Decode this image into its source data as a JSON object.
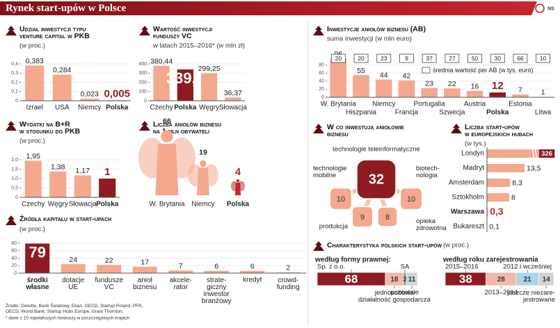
{
  "title": "Rynek start-upów w Polsce",
  "logo": "NS",
  "chart_data": [
    {
      "type": "bar",
      "title": "Udział inwestycji typu\nventure capital w PKB",
      "subtitle": "(w proc.)",
      "categories": [
        "Izrael",
        "USA",
        "Niemcy",
        "Polska"
      ],
      "values": [
        0.383,
        0.284,
        0.023,
        0.005
      ],
      "value_labels": [
        "0,383",
        "0,284",
        "0,023",
        "0,005"
      ],
      "color": "#f4a88e",
      "highlight": "Polska",
      "highlight_color": "#8e1b1f",
      "ylim": [
        0,
        0.4
      ],
      "yticks": [
        0,
        {
          "value": 0.1,
          "label": "0,1"
        },
        {
          "value": 0.2,
          "label": "0,2"
        },
        {
          "value": 0.3,
          "label": "0,3"
        },
        {
          "value": 0.4,
          "label": "0,4"
        }
      ],
      "grid": true
    },
    {
      "type": "bar",
      "title": "Wartość inwestycji\nfunduszy VC",
      "subtitle": "w latach 2015–2016* (w mln zł)",
      "categories": [
        "Czechy",
        "Polska",
        "Węgry",
        "Słowacja"
      ],
      "values": [
        380.44,
        339.9,
        299.25,
        36.37
      ],
      "value_labels": [
        "380,44",
        "339,9",
        "299,25",
        "36,37"
      ],
      "color": "#f4a88e",
      "highlight": "Polska",
      "highlight_color": "#8e1b1f",
      "ylim": [
        0,
        400
      ],
      "yticks": [
        0,
        100,
        200,
        300,
        400
      ],
      "grid": true
    },
    {
      "type": "bar",
      "title": "Wydatki na B+R\nw stosunku do PKB",
      "subtitle": "(w proc.)",
      "categories": [
        "Czechy",
        "Węgry",
        "Słowacja",
        "Polska"
      ],
      "values": [
        1.95,
        1.38,
        1.17,
        1
      ],
      "value_labels": [
        "1,95",
        "1,38",
        "1,17",
        "1"
      ],
      "color": "#f4a88e",
      "highlight": "Polska",
      "highlight_color": "#8e1b1f",
      "ylim": [
        0,
        2
      ],
      "yticks": [
        0,
        {
          "value": 0.5,
          "label": "0,5"
        },
        {
          "value": 1,
          "label": "1,0"
        },
        {
          "value": 1.5,
          "label": "1,5"
        },
        {
          "value": 2,
          "label": "2,0"
        }
      ],
      "grid": true
    },
    {
      "type": "pictogram",
      "title": "Liczba aniołów biznesu\nna 1 mln obywateli",
      "categories": [
        "W. Brytania",
        "Niemcy",
        "Polska"
      ],
      "values": [
        66,
        19,
        4
      ],
      "color": "#f4a88e",
      "highlight": "Polska",
      "highlight_color": "#c0272d"
    },
    {
      "type": "bar",
      "title": "Źródła kapitału w start-upach",
      "subtitle": "(w proc.)",
      "categories": [
        "środki\nwłasne",
        "dotacje\nUE",
        "fundusze\nVC",
        "anioł\nbiznesu",
        "akcele-\nrator",
        "strate-\ngiczny\ninwestor\nbranżowy",
        "kredyt",
        "crowd-\nfunding"
      ],
      "values": [
        79,
        24,
        22,
        17,
        7,
        6,
        6,
        2
      ],
      "color": "#f4a88e",
      "highlight": "środki\nwłasne",
      "highlight_color": "#8e1b1f",
      "ylim": [
        0,
        80
      ],
      "yticks": [
        0,
        20,
        40,
        60,
        80
      ],
      "grid": true
    },
    {
      "type": "bar",
      "title": "Inwestycje aniołów biznesu (AB)",
      "categories": [
        "W. Brytania",
        "Hiszpania",
        "Niemcy",
        "Francja",
        "Portugalia",
        "Szwecja",
        "Austria",
        "Polska",
        "Estonia",
        "Litwa"
      ],
      "series": [
        {
          "name": "suma inwestycji (w mln euro)",
          "values": [
            96,
            55,
            44,
            42,
            23,
            22,
            16,
            12,
            7,
            1
          ]
        },
        {
          "name": "średnia wartość per AB (w tys. euro)",
          "values": [
            20,
            20,
            23,
            9,
            37,
            27,
            50,
            30,
            66,
            10
          ]
        }
      ],
      "color": "#f4a88e",
      "highlight": "Polska",
      "highlight_color": "#8e1b1f",
      "ylim": [
        0,
        100
      ],
      "yticks": [
        0,
        20,
        40,
        60,
        80
      ],
      "grid": true
    },
    {
      "type": "diagram",
      "title": "W co inwestują aniołowie\nbiznesu",
      "items": [
        {
          "name": "technologie teleinformatyczne",
          "value": 32
        },
        {
          "name": "technologie\nmobilne",
          "value": 10
        },
        {
          "name": "biotech-\nnologia",
          "value": 10
        },
        {
          "name": "produkcja",
          "value": 9
        },
        {
          "name": "opieka\nzdrowotna",
          "value": 8
        }
      ],
      "color": "#f4a88e",
      "highlight_color": "#8e1b1f"
    },
    {
      "type": "hbar",
      "title": "Liczba start-upów\nw europejskich hubach",
      "subtitle": "(w tys.)",
      "categories": [
        "Londyn",
        "Madryt",
        "Amsterdam",
        "Sztokholm",
        "Warszawa",
        "Bukareszt"
      ],
      "values": [
        326,
        13.5,
        8.3,
        8,
        0.3,
        0.1
      ],
      "value_labels": [
        "326",
        "13,5",
        "8,3",
        "8",
        "0,3",
        "0,1"
      ],
      "color": "#f4a88e",
      "highlight": "Warszawa",
      "highlight_color": "#c0272d",
      "xlim": [
        0,
        20
      ],
      "axis_break": true
    },
    {
      "type": "stacked_bar",
      "title": "Charakterystyka polskich start-upów",
      "subtitle": "(w proc.)",
      "groups": [
        {
          "label": "według formy prawnej:",
          "segments": [
            {
              "name": "Sp. z o.o.",
              "value": 68,
              "color": "#8e1b1f"
            },
            {
              "name": "jednosobowa\ndziałalność gospodarcza",
              "value": 18,
              "color": "#f2b9a6"
            },
            {
              "name": "SA",
              "value": 3,
              "color": "#8d9aa7"
            },
            {
              "name": "pozostałe",
              "value": 11,
              "color": "#cfd3d6"
            }
          ]
        },
        {
          "label": "według roku zarejestrowania",
          "segments": [
            {
              "name": "2015–2016",
              "value": 38,
              "color": "#8e1b1f"
            },
            {
              "name": "2013–2014",
              "value": 28,
              "color": "#f2b9a6"
            },
            {
              "name": "2012 i wcześniej",
              "value": 21,
              "color": "#a9d6ea"
            },
            {
              "name": "jeszcze niezare-\njestrowane",
              "value": 14,
              "color": "#cfd3d6"
            }
          ]
        }
      ]
    }
  ],
  "source": "Źródło: Deloitte, Bank Światowy, Eban. OECD, Startup Poland, PFR,\nOECD, World Bank, Startup Hubs Europe, Grant Thornton,",
  "note": "* dane z 10 największych funduszy w poszczególnych krajach"
}
